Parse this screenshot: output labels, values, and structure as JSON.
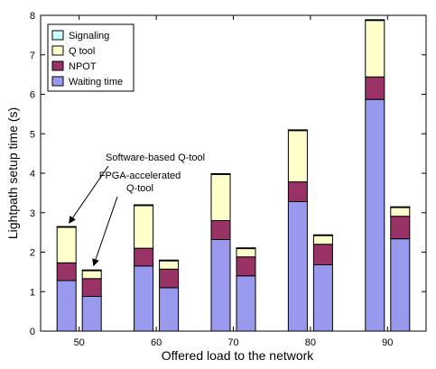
{
  "chart_data": {
    "type": "bar",
    "stacked": true,
    "categories": [
      "50",
      "60",
      "70",
      "80",
      "90"
    ],
    "bar_groups": [
      "Software-based Q-tool",
      "FPGA-accelerated Q-tool"
    ],
    "xlabel": "Offered load to the network",
    "ylabel": "Lightpath setup time (s)",
    "ylim": [
      0,
      8
    ],
    "yticks": [
      0,
      1,
      2,
      3,
      4,
      5,
      6,
      7,
      8
    ],
    "legend_position": "top-left",
    "grid": false,
    "series": [
      {
        "name": "Waiting time",
        "color": "#9999ee",
        "values": [
          [
            1.28,
            0.88
          ],
          [
            1.65,
            1.1
          ],
          [
            2.32,
            1.4
          ],
          [
            3.28,
            1.68
          ],
          [
            5.87,
            2.34
          ]
        ]
      },
      {
        "name": "NPOT",
        "color": "#993366",
        "values": [
          [
            0.45,
            0.45
          ],
          [
            0.45,
            0.47
          ],
          [
            0.48,
            0.48
          ],
          [
            0.5,
            0.52
          ],
          [
            0.57,
            0.57
          ]
        ]
      },
      {
        "name": "Q tool",
        "color": "#ffffcc",
        "values": [
          [
            0.9,
            0.2
          ],
          [
            1.08,
            0.21
          ],
          [
            1.17,
            0.21
          ],
          [
            1.3,
            0.22
          ],
          [
            1.43,
            0.22
          ]
        ]
      },
      {
        "name": "Signaling",
        "color": "#ccffff",
        "values": [
          [
            0.02,
            0.02
          ],
          [
            0.02,
            0.02
          ],
          [
            0.02,
            0.02
          ],
          [
            0.02,
            0.02
          ],
          [
            0.02,
            0.02
          ]
        ]
      }
    ],
    "legend_order": [
      "Signaling",
      "Q tool",
      "NPOT",
      "Waiting time"
    ],
    "annotations": [
      {
        "text": "Software-based Q-tool",
        "target_category": "50",
        "target_bar": 0
      },
      {
        "text_lines": [
          "FPGA-accelerated",
          "Q-tool"
        ],
        "target_category": "50",
        "target_bar": 1
      }
    ]
  }
}
